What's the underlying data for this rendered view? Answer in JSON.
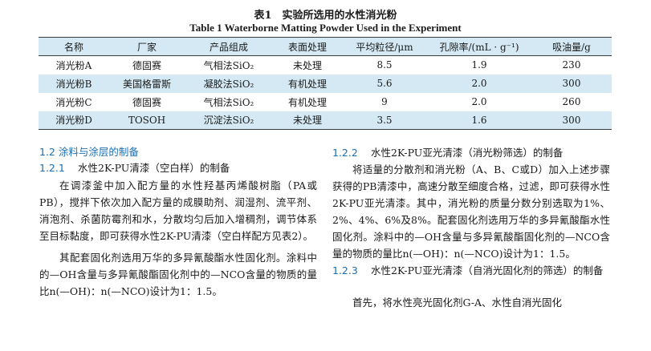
{
  "table": {
    "caption_cn": "表1　实验所选用的水性消光粉",
    "caption_en": "Table 1   Waterborne Matting Powder Used in the Experiment",
    "headers": [
      "名称",
      "厂家",
      "产品组成",
      "表面处理",
      "平均粒径/μm",
      "孔隙率/(mL · g⁻¹)",
      "吸油量/g"
    ],
    "rows": [
      [
        "消光粉A",
        "德固赛",
        "气相法SiO₂",
        "未处理",
        "8.5",
        "1.9",
        "230"
      ],
      [
        "消光粉B",
        "美国格雷斯",
        "凝胶法SiO₂",
        "有机处理",
        "5.6",
        "2.0",
        "300"
      ],
      [
        "消光粉C",
        "德固赛",
        "气相法SiO₂",
        "有机处理",
        "9",
        "2.0",
        "260"
      ],
      [
        "消光粉D",
        "TOSOH",
        "沉淀法SiO₂",
        "未处理",
        "3.5",
        "1.6",
        "300"
      ]
    ]
  },
  "left": {
    "section": "1.2   涂料与涂层的制备",
    "sub1_num": "1.2.1",
    "sub1_title": "水性2K-PU清漆（空白样）的制备",
    "para1": "在调漆釜中加入配方量的水性羟基丙烯酸树脂（PA或PB），搅拌下依次加入配方量的成膜助剂、润湿剂、流平剂、消泡剂、杀菌防霉剂和水，分散均匀后加入增稠剂，调节体系至目标黏度，即可获得水性2K-PU清漆（空白样配方见表2）。",
    "para2": "其配套固化剂选用万华的多异氰酸酯水性固化剂。涂料中的—OH含量与多异氰酸酯固化剂中的—NCO含量的物质的量比n(—OH)：n(—NCO)设计为1：1.5。"
  },
  "right": {
    "sub2_num": "1.2.2",
    "sub2_title": "水性2K-PU亚光清漆（消光粉筛选）的制备",
    "para3": "将适量的分散剂和消光粉（A、B、C或D）加入上述步骤获得的PB清漆中，高速分散至细度合格，过滤，即可获得水性2K-PU亚光清漆。其中，消光粉的质量分数分别选取为1%、2%、4%、6%及8%。配套固化剂选用万华的多异氰酸酯水性固化剂。涂料中的—OH含量与多异氰酸酯固化剂的—NCO含量的物质的量比n(—OH)：n(—NCO)设计为1：1.5。",
    "sub3_num": "1.2.3",
    "sub3_title": "水性2K-PU亚光清漆（自消光固化剂的筛选）的制备",
    "para4": "首先，将水性亮光固化剂G-A、水性自消光固化"
  }
}
